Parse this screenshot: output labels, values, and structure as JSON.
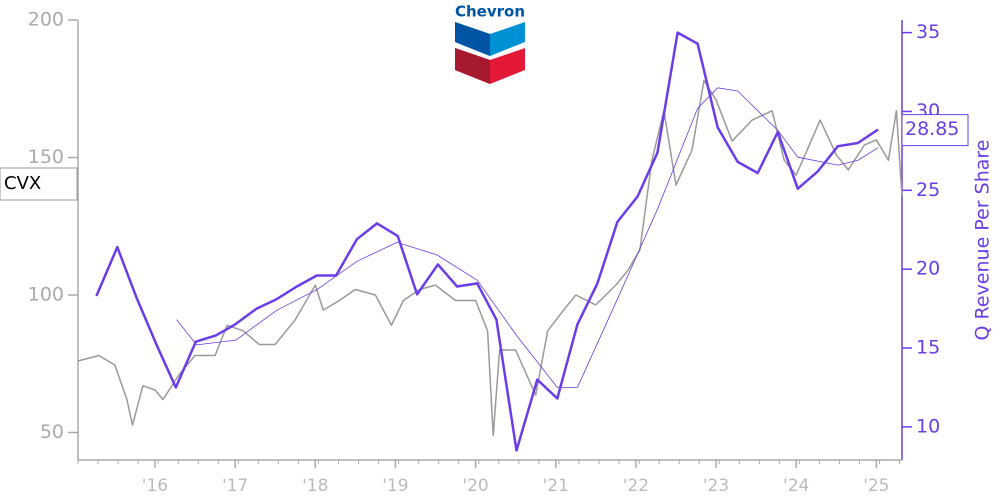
{
  "chart_data": {
    "type": "line",
    "logo_text": "Chevron",
    "ticker": "CVX",
    "y2label": "Q Revenue Per Share",
    "xlim": [
      2015.04,
      2025.32
    ],
    "xticks": [
      {
        "value": 2016,
        "label": "'16"
      },
      {
        "value": 2017,
        "label": "'17"
      },
      {
        "value": 2018,
        "label": "'18"
      },
      {
        "value": 2019,
        "label": "'19"
      },
      {
        "value": 2020,
        "label": "'20"
      },
      {
        "value": 2021,
        "label": "'21"
      },
      {
        "value": 2022,
        "label": "'22"
      },
      {
        "value": 2023,
        "label": "'23"
      },
      {
        "value": 2024,
        "label": "'24"
      },
      {
        "value": 2025,
        "label": "'25"
      }
    ],
    "ylim": [
      40,
      200
    ],
    "yticks": [
      50,
      100,
      150,
      200
    ],
    "y2lim": [
      7.9,
      35.8
    ],
    "y2ticks": [
      10,
      15,
      20,
      25,
      30,
      35
    ],
    "left_axis_color": "#aaaaaa",
    "right_axis_color": "#6a3de8",
    "series": [
      {
        "color": "#999999",
        "linewidth": 1.5,
        "x": [
          2015.04,
          2015.3,
          2015.5,
          2015.65,
          2015.72,
          2015.85,
          2016.0,
          2016.1,
          2016.3,
          2016.5,
          2016.75,
          2016.9,
          2017.1,
          2017.3,
          2017.5,
          2017.75,
          2018.0,
          2018.1,
          2018.3,
          2018.5,
          2018.75,
          2018.95,
          2019.1,
          2019.3,
          2019.5,
          2019.75,
          2020.0,
          2020.15,
          2020.22,
          2020.3,
          2020.5,
          2020.75,
          2020.9,
          2021.1,
          2021.25,
          2021.5,
          2021.75,
          2021.9,
          2022.05,
          2022.2,
          2022.35,
          2022.5,
          2022.7,
          2022.85,
          2023.0,
          2023.2,
          2023.45,
          2023.7,
          2023.85,
          2024.0,
          2024.3,
          2024.5,
          2024.65,
          2024.85,
          2025.0,
          2025.15,
          2025.25,
          2025.32
        ],
        "values": [
          76,
          78,
          74.5,
          62,
          52.7,
          67,
          65.5,
          62,
          71,
          78,
          78,
          89,
          87,
          82,
          82,
          91,
          103.6,
          94.5,
          98,
          102,
          100,
          89,
          98,
          102,
          103.6,
          98,
          98,
          87,
          49,
          80,
          80,
          63.6,
          87,
          94.5,
          100,
          96.4,
          103.6,
          109,
          116.4,
          149,
          167,
          140,
          152.7,
          178,
          171,
          156,
          163.6,
          167,
          149,
          143.6,
          163.6,
          151,
          145.5,
          154.5,
          156.4,
          149,
          167,
          136
        ]
      },
      {
        "color": "#6a3de8",
        "linewidth": 2.5,
        "axis": "y2",
        "x": [
          2015.27,
          2015.53,
          2015.77,
          2016.02,
          2016.26,
          2016.51,
          2016.76,
          2017.0,
          2017.27,
          2017.52,
          2017.77,
          2018.02,
          2018.26,
          2018.52,
          2018.77,
          2019.03,
          2019.27,
          2019.53,
          2019.77,
          2020.02,
          2020.26,
          2020.51,
          2020.77,
          2021.02,
          2021.27,
          2021.52,
          2021.77,
          2022.02,
          2022.27,
          2022.52,
          2022.77,
          2023.02,
          2023.27,
          2023.52,
          2023.77,
          2024.02,
          2024.27,
          2024.52,
          2024.77,
          2025.02
        ],
        "values": [
          18.3,
          21.4,
          18.2,
          15.2,
          12.5,
          15.4,
          15.8,
          16.5,
          17.5,
          18.1,
          18.9,
          19.6,
          19.6,
          21.9,
          22.9,
          22.1,
          18.4,
          20.3,
          18.9,
          19.1,
          16.8,
          8.5,
          13.0,
          11.8,
          16.5,
          19.1,
          23.0,
          24.6,
          27.4,
          35.0,
          34.3,
          29.0,
          26.8,
          26.1,
          28.7,
          25.1,
          26.2,
          27.8,
          28.0,
          28.85
        ]
      },
      {
        "color": "#6a3de8",
        "linewidth": 0.8,
        "axis": "y2",
        "x": [
          2016.27,
          2016.52,
          2017.01,
          2017.52,
          2018.02,
          2018.52,
          2019.02,
          2019.52,
          2020.02,
          2020.51,
          2021.02,
          2021.27,
          2021.77,
          2022.27,
          2022.77,
          2023.02,
          2023.27,
          2023.77,
          2024.02,
          2024.52,
          2024.77,
          2025.02
        ],
        "values": [
          16.8,
          15.2,
          15.5,
          17.4,
          18.7,
          20.5,
          21.7,
          20.9,
          19.3,
          15.8,
          12.5,
          12.5,
          18.1,
          23.8,
          30.2,
          31.5,
          31.3,
          28.8,
          27.1,
          26.6,
          26.9,
          27.7
        ]
      }
    ]
  }
}
